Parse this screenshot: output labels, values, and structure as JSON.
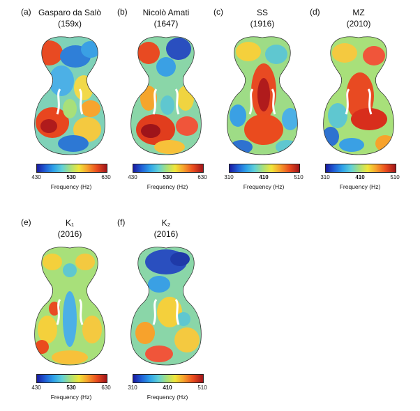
{
  "panels": [
    {
      "letter": "(a)",
      "title": "Gasparo da Salò",
      "subtitle": "(159x)",
      "scale": [
        "430",
        "530",
        "630"
      ],
      "axis": "Frequency (Hz)"
    },
    {
      "letter": "(b)",
      "title": "Nicolò Amati",
      "subtitle": "(1647)",
      "scale": [
        "430",
        "530",
        "630"
      ],
      "axis": "Frequency (Hz)"
    },
    {
      "letter": "(c)",
      "title": "SS",
      "subtitle": "(1916)",
      "scale": [
        "310",
        "410",
        "510"
      ],
      "axis": "Frequency (Hz)"
    },
    {
      "letter": "(d)",
      "title": "MZ",
      "subtitle": "(2010)",
      "scale": [
        "310",
        "410",
        "510"
      ],
      "axis": "Frequency (Hz)"
    },
    {
      "letter": "(e)",
      "title": "K₁",
      "subtitle": "(2016)",
      "scale": [
        "430",
        "530",
        "630"
      ],
      "axis": "Frequency (Hz)"
    },
    {
      "letter": "(f)",
      "title": "K₂",
      "subtitle": "(2016)",
      "scale": [
        "310",
        "410",
        "510"
      ],
      "axis": "Frequency (Hz)"
    }
  ]
}
